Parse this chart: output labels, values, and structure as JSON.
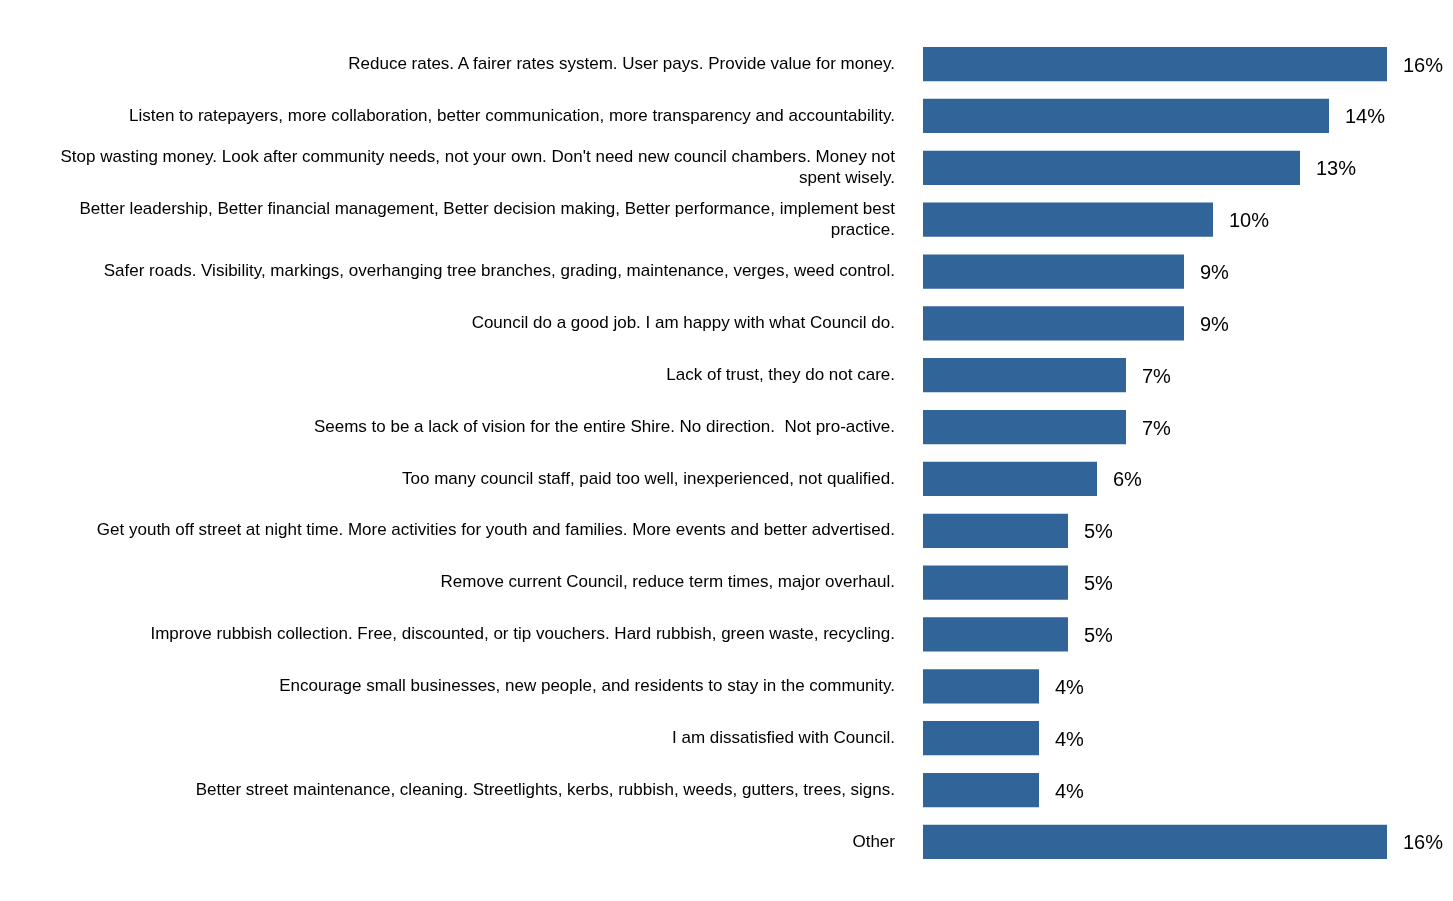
{
  "chart_data": {
    "type": "bar",
    "orientation": "horizontal",
    "categories": [
      "Reduce rates. A fairer rates system. User pays. Provide value for money.",
      "Listen to ratepayers, more collaboration, better communication, more transparency and accountability.",
      "Stop wasting money. Look after community needs, not your own. Don't need new council chambers. Money not spent wisely.",
      "Better leadership, Better financial management, Better decision making, Better performance, implement best practice.",
      "Safer roads. Visibility, markings, overhanging tree branches, grading, maintenance, verges, weed control.",
      "Council do a good job. I am happy with what Council do.",
      "Lack of trust, they do not care.",
      "Seems to be a lack of vision for the entire Shire. No direction.  Not pro-active.",
      "Too many council staff, paid too well, inexperienced, not qualified.",
      "Get youth off street at night time. More activities for youth and families. More events and better advertised.",
      "Remove current Council, reduce term times, major overhaul.",
      "Improve rubbish collection. Free, discounted, or tip vouchers. Hard rubbish, green waste, recycling.",
      "Encourage small businesses, new people, and residents to stay in the community.",
      "I am dissatisfied with Council.",
      "Better street maintenance, cleaning. Streetlights, kerbs, rubbish, weeds, gutters, trees, signs.",
      "Other"
    ],
    "values": [
      16,
      14,
      13,
      10,
      9,
      9,
      7,
      7,
      6,
      5,
      5,
      5,
      4,
      4,
      4,
      16
    ],
    "value_labels": [
      "16%",
      "14%",
      "13%",
      "10%",
      "9%",
      "9%",
      "7%",
      "7%",
      "6%",
      "5%",
      "5%",
      "5%",
      "4%",
      "4%",
      "4%",
      "16%"
    ],
    "color": "#31659a"
  }
}
